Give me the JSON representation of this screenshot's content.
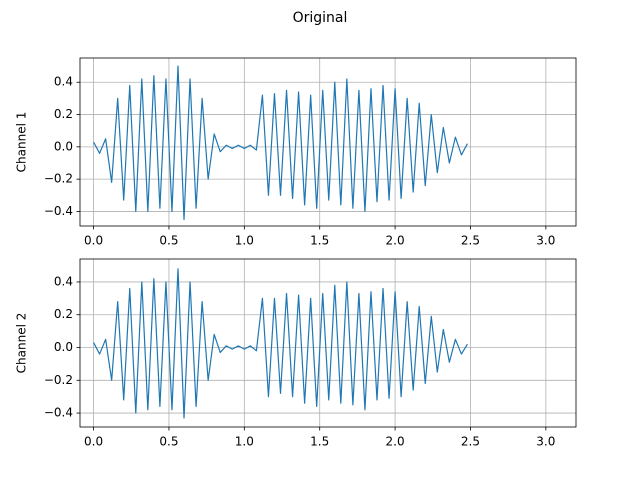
{
  "title": "Original",
  "chart_data": [
    {
      "type": "line",
      "ylabel": "Channel 1",
      "x": [
        0,
        0.04,
        0.08,
        0.12,
        0.16,
        0.2,
        0.24,
        0.28,
        0.32,
        0.36,
        0.4,
        0.44,
        0.48,
        0.52,
        0.56,
        0.6,
        0.64,
        0.68,
        0.72,
        0.76,
        0.8,
        0.84,
        0.88,
        0.92,
        0.96,
        1.0,
        1.04,
        1.08,
        1.12,
        1.16,
        1.2,
        1.24,
        1.28,
        1.32,
        1.36,
        1.4,
        1.44,
        1.48,
        1.52,
        1.56,
        1.6,
        1.64,
        1.68,
        1.72,
        1.76,
        1.8,
        1.84,
        1.88,
        1.92,
        1.96,
        2.0,
        2.04,
        2.08,
        2.12,
        2.16,
        2.2,
        2.24,
        2.28,
        2.32,
        2.36,
        2.4,
        2.44,
        2.48
      ],
      "series": [
        {
          "color": "#1f77b4",
          "values": [
            0.03,
            -0.04,
            0.05,
            -0.22,
            0.3,
            -0.33,
            0.38,
            -0.4,
            0.42,
            -0.4,
            0.44,
            -0.38,
            0.42,
            -0.4,
            0.5,
            -0.45,
            0.42,
            -0.38,
            0.3,
            -0.2,
            0.08,
            -0.03,
            0.01,
            -0.01,
            0.01,
            -0.01,
            0.01,
            -0.02,
            0.32,
            -0.3,
            0.33,
            -0.3,
            0.35,
            -0.32,
            0.34,
            -0.36,
            0.32,
            -0.38,
            0.35,
            -0.33,
            0.4,
            -0.36,
            0.42,
            -0.38,
            0.35,
            -0.4,
            0.36,
            -0.34,
            0.38,
            -0.33,
            0.36,
            -0.32,
            0.3,
            -0.28,
            0.27,
            -0.24,
            0.2,
            -0.16,
            0.12,
            -0.1,
            0.06,
            -0.05,
            0.02
          ]
        }
      ],
      "xlim": [
        -0.09,
        3.2
      ],
      "ylim": [
        -0.49,
        0.55
      ],
      "xticks": [
        {
          "value": 0,
          "label": "0.0"
        },
        {
          "value": 0.5,
          "label": "0.5"
        },
        {
          "value": 1,
          "label": "1.0"
        },
        {
          "value": 1.5,
          "label": "1.5"
        },
        {
          "value": 2,
          "label": "2.0"
        },
        {
          "value": 2.5,
          "label": "2.5"
        },
        {
          "value": 3,
          "label": "3.0"
        }
      ],
      "yticks": [
        {
          "value": -0.4,
          "label": "−0.4"
        },
        {
          "value": -0.2,
          "label": "−0.2"
        },
        {
          "value": 0,
          "label": "0.0"
        },
        {
          "value": 0.2,
          "label": "0.2"
        },
        {
          "value": 0.4,
          "label": "0.4"
        }
      ],
      "grid": true
    },
    {
      "type": "line",
      "ylabel": "Channel 2",
      "x": [
        0,
        0.04,
        0.08,
        0.12,
        0.16,
        0.2,
        0.24,
        0.28,
        0.32,
        0.36,
        0.4,
        0.44,
        0.48,
        0.52,
        0.56,
        0.6,
        0.64,
        0.68,
        0.72,
        0.76,
        0.8,
        0.84,
        0.88,
        0.92,
        0.96,
        1.0,
        1.04,
        1.08,
        1.12,
        1.16,
        1.2,
        1.24,
        1.28,
        1.32,
        1.36,
        1.4,
        1.44,
        1.48,
        1.52,
        1.56,
        1.6,
        1.64,
        1.68,
        1.72,
        1.76,
        1.8,
        1.84,
        1.88,
        1.92,
        1.96,
        2.0,
        2.04,
        2.08,
        2.12,
        2.16,
        2.2,
        2.24,
        2.28,
        2.32,
        2.36,
        2.4,
        2.44,
        2.48
      ],
      "series": [
        {
          "color": "#1f77b4",
          "values": [
            0.03,
            -0.04,
            0.05,
            -0.2,
            0.28,
            -0.32,
            0.36,
            -0.4,
            0.4,
            -0.38,
            0.42,
            -0.36,
            0.4,
            -0.38,
            0.48,
            -0.43,
            0.4,
            -0.36,
            0.28,
            -0.2,
            0.08,
            -0.03,
            0.01,
            -0.01,
            0.01,
            -0.01,
            0.01,
            -0.02,
            0.3,
            -0.3,
            0.3,
            -0.28,
            0.33,
            -0.3,
            0.32,
            -0.34,
            0.3,
            -0.36,
            0.33,
            -0.32,
            0.38,
            -0.34,
            0.4,
            -0.35,
            0.33,
            -0.38,
            0.34,
            -0.32,
            0.36,
            -0.31,
            0.34,
            -0.3,
            0.28,
            -0.26,
            0.25,
            -0.22,
            0.19,
            -0.15,
            0.11,
            -0.09,
            0.05,
            -0.04,
            0.02
          ]
        }
      ],
      "xlim": [
        -0.09,
        3.2
      ],
      "ylim": [
        -0.485,
        0.54
      ],
      "xticks": [
        {
          "value": 0,
          "label": "0.0"
        },
        {
          "value": 0.5,
          "label": "0.5"
        },
        {
          "value": 1,
          "label": "1.0"
        },
        {
          "value": 1.5,
          "label": "1.5"
        },
        {
          "value": 2,
          "label": "2.0"
        },
        {
          "value": 2.5,
          "label": "2.5"
        },
        {
          "value": 3,
          "label": "3.0"
        }
      ],
      "yticks": [
        {
          "value": -0.4,
          "label": "−0.4"
        },
        {
          "value": -0.2,
          "label": "−0.2"
        },
        {
          "value": 0,
          "label": "0.0"
        },
        {
          "value": 0.2,
          "label": "0.2"
        },
        {
          "value": 0.4,
          "label": "0.4"
        }
      ],
      "grid": true
    }
  ]
}
